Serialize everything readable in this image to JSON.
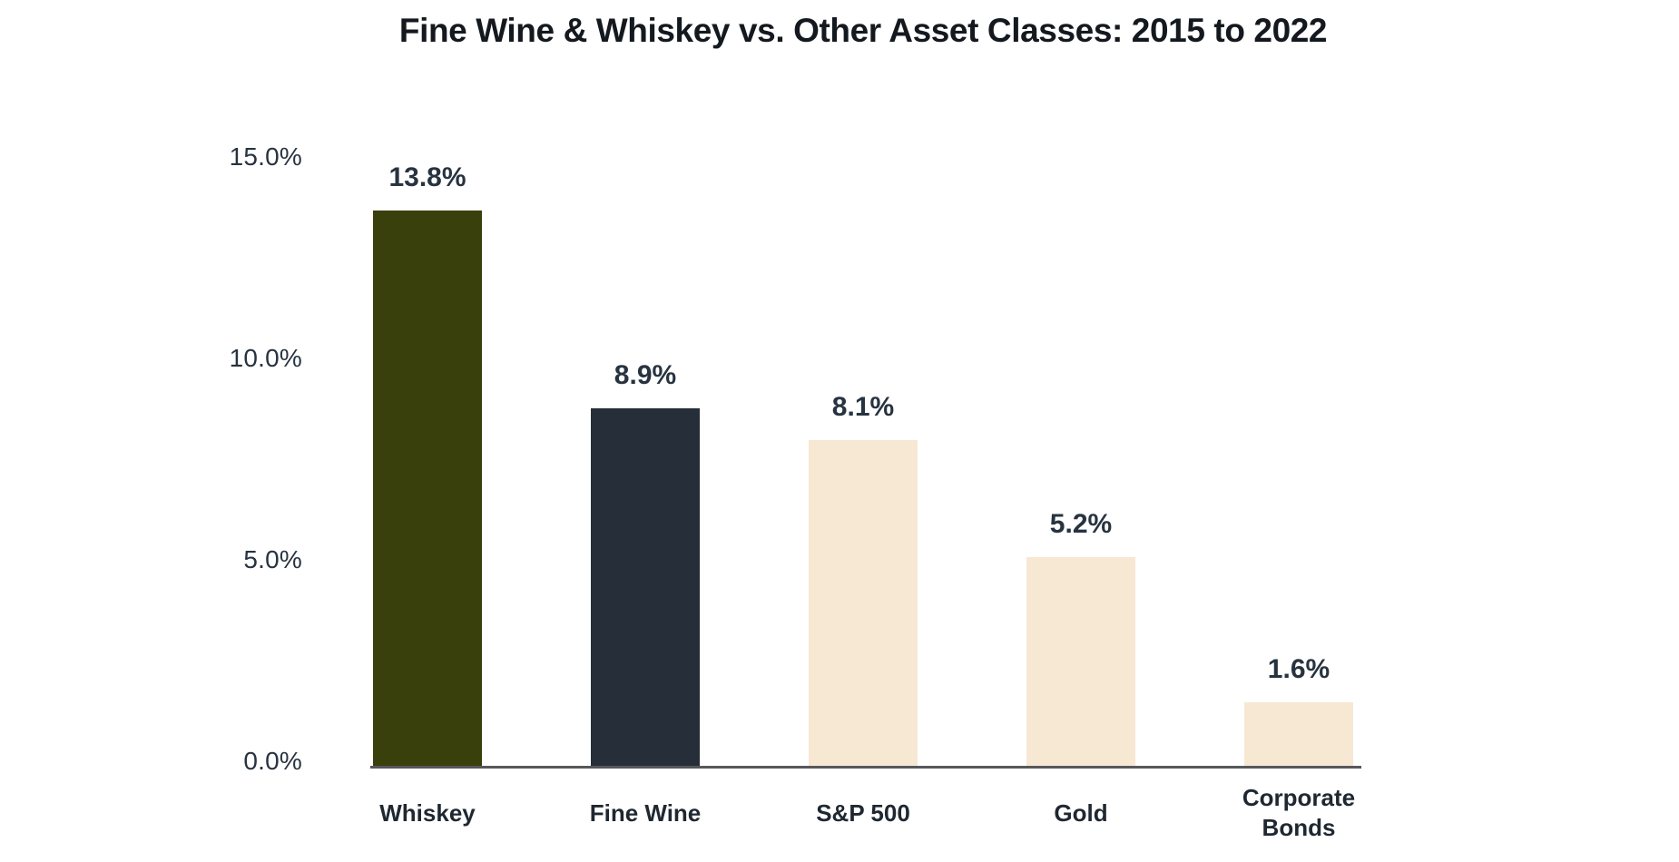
{
  "chart_data": {
    "type": "bar",
    "title": "Fine Wine & Whiskey vs. Other Asset Classes: 2015 to 2022",
    "categories": [
      "Whiskey",
      "Fine Wine",
      "S&P 500",
      "Gold",
      "Corporate Bonds"
    ],
    "values": [
      13.8,
      8.9,
      8.1,
      5.2,
      1.6
    ],
    "value_labels": [
      "13.8%",
      "8.9%",
      "8.1%",
      "5.2%",
      "1.6%"
    ],
    "bar_colors": [
      "#3A400C",
      "#262F39",
      "#F7E8D3",
      "#F7E8D3",
      "#F7E8D3"
    ],
    "y_ticks": [
      {
        "label": "0.0%",
        "value": 0
      },
      {
        "label": "5.0%",
        "value": 5
      },
      {
        "label": "10.0%",
        "value": 10
      },
      {
        "label": "15.0%",
        "value": 15
      }
    ],
    "ylim": [
      0,
      15
    ],
    "xlabel": "",
    "ylabel": "",
    "grid": false,
    "legend": false,
    "colors": {
      "title_text": "#14191F",
      "tick_text": "#273340",
      "value_label_text": "#273340",
      "category_text": "#1F2831",
      "axis_line": "#57585B",
      "background": "#FFFFFF"
    }
  }
}
